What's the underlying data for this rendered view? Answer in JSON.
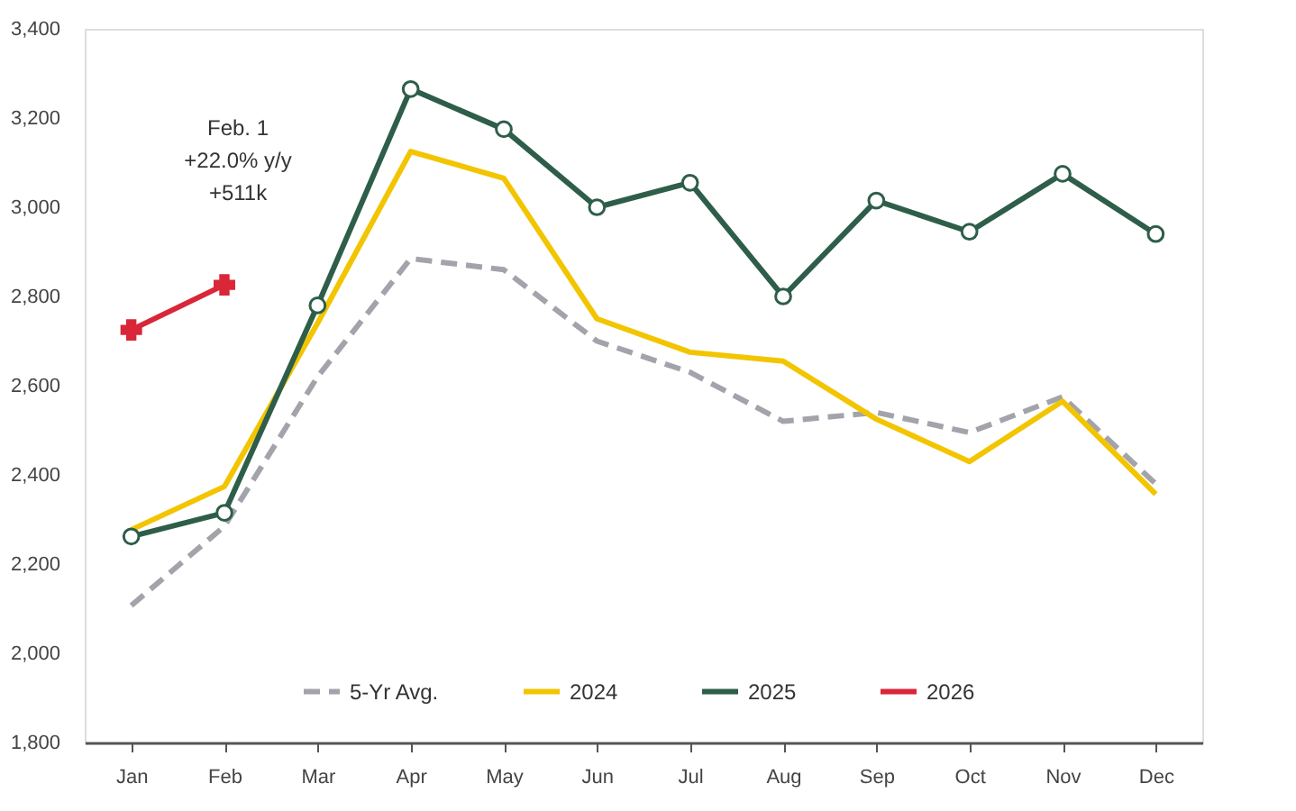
{
  "chart_data": {
    "type": "line",
    "categories": [
      "Jan",
      "Feb",
      "Mar",
      "Apr",
      "May",
      "Jun",
      "Jul",
      "Aug",
      "Sep",
      "Oct",
      "Nov",
      "Dec"
    ],
    "series": [
      {
        "name": "5-Yr Avg.",
        "color": "#a3a3ab",
        "line_style": "dashed",
        "marker": "none",
        "values": [
          2107,
          2285,
          2620,
          2885,
          2860,
          2700,
          2630,
          2520,
          2540,
          2495,
          2575,
          2380
        ]
      },
      {
        "name": "2024",
        "color": "#f2c500",
        "line_style": "solid",
        "marker": "none",
        "values": [
          2277,
          2374,
          2740,
          3125,
          3065,
          2750,
          2675,
          2655,
          2525,
          2430,
          2565,
          2357
        ]
      },
      {
        "name": "2025",
        "color": "#2e5e4a",
        "line_style": "solid",
        "marker": "circle",
        "values": [
          2262,
          2315,
          2780,
          3265,
          3175,
          3000,
          3055,
          2800,
          3015,
          2945,
          3075,
          2940
        ]
      },
      {
        "name": "2026",
        "color": "#d92638",
        "line_style": "solid",
        "marker": "cross",
        "values": [
          2725,
          2826,
          null,
          null,
          null,
          null,
          null,
          null,
          null,
          null,
          null,
          null
        ]
      }
    ],
    "ylim": [
      1800,
      3400
    ],
    "yticks": [
      {
        "value": 1800,
        "label": "1,800"
      },
      {
        "value": 2000,
        "label": "2,000"
      },
      {
        "value": 2200,
        "label": "2,200"
      },
      {
        "value": 2400,
        "label": "2,400"
      },
      {
        "value": 2600,
        "label": "2,600"
      },
      {
        "value": 2800,
        "label": "2,800"
      },
      {
        "value": 3000,
        "label": "3,000"
      },
      {
        "value": 3200,
        "label": "3,200"
      },
      {
        "value": 3400,
        "label": "3,400"
      }
    ],
    "grid": false,
    "legend": "bottom",
    "annotations": [
      "Feb. 1\n+22.0% y/y\n+511k"
    ]
  }
}
